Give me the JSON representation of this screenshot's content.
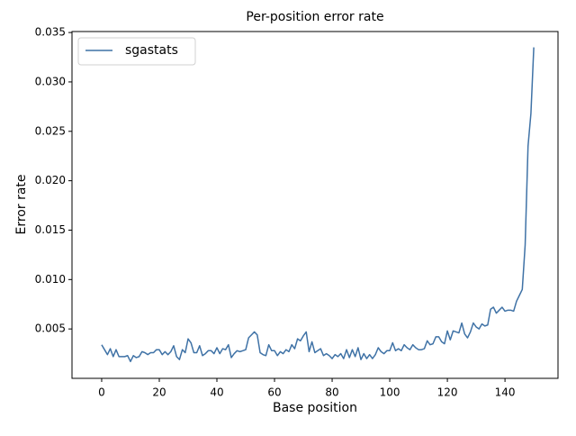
{
  "chart_data": {
    "type": "line",
    "title": "Per-position error rate",
    "xlabel": "Base position",
    "ylabel": "Error rate",
    "legend": "upper left",
    "x": [
      0,
      1,
      2,
      3,
      4,
      5,
      6,
      7,
      8,
      9,
      10,
      11,
      12,
      13,
      14,
      15,
      16,
      17,
      18,
      19,
      20,
      21,
      22,
      23,
      24,
      25,
      26,
      27,
      28,
      29,
      30,
      31,
      32,
      33,
      34,
      35,
      36,
      37,
      38,
      39,
      40,
      41,
      42,
      43,
      44,
      45,
      46,
      47,
      48,
      49,
      50,
      51,
      52,
      53,
      54,
      55,
      56,
      57,
      58,
      59,
      60,
      61,
      62,
      63,
      64,
      65,
      66,
      67,
      68,
      69,
      70,
      71,
      72,
      73,
      74,
      75,
      76,
      77,
      78,
      79,
      80,
      81,
      82,
      83,
      84,
      85,
      86,
      87,
      88,
      89,
      90,
      91,
      92,
      93,
      94,
      95,
      96,
      97,
      98,
      99,
      100,
      101,
      102,
      103,
      104,
      105,
      106,
      107,
      108,
      109,
      110,
      111,
      112,
      113,
      114,
      115,
      116,
      117,
      118,
      119,
      120,
      121,
      122,
      123,
      124,
      125,
      126,
      127,
      128,
      129,
      130,
      131,
      132,
      133,
      134,
      135,
      136,
      137,
      138,
      139,
      140,
      141,
      142,
      143,
      144,
      145,
      146,
      147,
      148,
      149,
      150
    ],
    "series": [
      {
        "name": "sgastats",
        "color": "#3f72a6",
        "values": [
          0.0034,
          0.0029,
          0.0024,
          0.003,
          0.0022,
          0.0029,
          0.0022,
          0.0022,
          0.0022,
          0.0023,
          0.0017,
          0.0023,
          0.0021,
          0.0022,
          0.0027,
          0.0026,
          0.0024,
          0.0026,
          0.0026,
          0.0029,
          0.0029,
          0.0024,
          0.0027,
          0.0024,
          0.0027,
          0.0033,
          0.0022,
          0.0019,
          0.0029,
          0.0026,
          0.004,
          0.0036,
          0.0026,
          0.0026,
          0.0033,
          0.0023,
          0.0025,
          0.0028,
          0.0028,
          0.0025,
          0.0031,
          0.0025,
          0.003,
          0.0029,
          0.0034,
          0.0021,
          0.0025,
          0.0028,
          0.0027,
          0.0028,
          0.0029,
          0.0041,
          0.0044,
          0.0047,
          0.0044,
          0.0026,
          0.0024,
          0.0023,
          0.0034,
          0.0028,
          0.0028,
          0.0023,
          0.0027,
          0.0025,
          0.0029,
          0.0027,
          0.0034,
          0.003,
          0.004,
          0.0038,
          0.0043,
          0.0047,
          0.0027,
          0.0037,
          0.0026,
          0.0028,
          0.003,
          0.0023,
          0.0025,
          0.0023,
          0.002,
          0.0024,
          0.0022,
          0.0025,
          0.002,
          0.0029,
          0.0021,
          0.0029,
          0.0022,
          0.0031,
          0.0019,
          0.0025,
          0.002,
          0.0024,
          0.002,
          0.0024,
          0.0031,
          0.0027,
          0.0025,
          0.0028,
          0.0028,
          0.0036,
          0.0028,
          0.003,
          0.0028,
          0.0034,
          0.0031,
          0.0029,
          0.0034,
          0.0031,
          0.0029,
          0.0029,
          0.003,
          0.0038,
          0.0034,
          0.0035,
          0.0042,
          0.0042,
          0.0037,
          0.0035,
          0.0048,
          0.0039,
          0.0048,
          0.0047,
          0.0046,
          0.0056,
          0.0045,
          0.0041,
          0.0047,
          0.0056,
          0.0052,
          0.005,
          0.0055,
          0.0053,
          0.0054,
          0.007,
          0.0072,
          0.0066,
          0.0069,
          0.0072,
          0.0068,
          0.0069,
          0.0069,
          0.0068,
          0.0078,
          0.0084,
          0.009,
          0.0135,
          0.0235,
          0.0268,
          0.0335
        ]
      }
    ],
    "xlim": [
      -10.3,
      158.4
    ],
    "xticks": [
      0,
      20,
      40,
      60,
      80,
      100,
      120,
      140
    ],
    "ylim": [
      0,
      0.0351
    ],
    "yticks": [
      0.005,
      {
        "value": 0.01,
        "label": "0.010"
      },
      0.015,
      {
        "value": 0.02,
        "label": "0.020"
      },
      0.025,
      {
        "value": 0.03,
        "label": "0.030"
      },
      0.035
    ]
  }
}
